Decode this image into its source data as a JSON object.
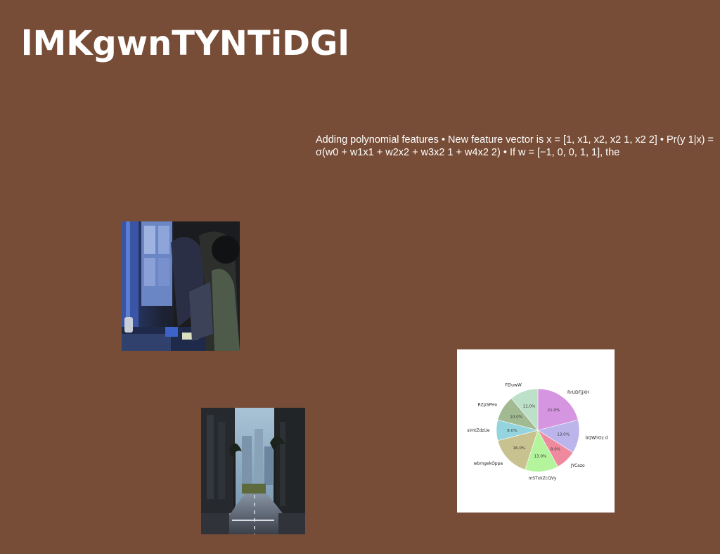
{
  "slide": {
    "background": "#774d37",
    "title": "lMKgwnTYNTiDGl",
    "body_text": "Adding polynomial features • New feature vector is x = [1, x1, x2, x2 1, x2 2] • Pr(y 1|x) = σ(w0 + w1x1 + w2x2 + w3x2 1 + w4x2 2) • If w = [−1, 0, 0, 1, 1], the"
  },
  "images": [
    {
      "name": "office-photo",
      "description_icon": "photo-icon"
    },
    {
      "name": "street-photo",
      "description_icon": "photo-icon"
    }
  ],
  "chart_data": {
    "type": "pie",
    "title": "",
    "slices": [
      {
        "label": "RrUDFjjXH",
        "value": 21.0,
        "pct_label": "21.0%",
        "color": "#d595e1"
      },
      {
        "label": "bQWhOz d",
        "value": 13.0,
        "pct_label": "13.0%",
        "color": "#bcb5ec"
      },
      {
        "label": "JYCazo",
        "value": 8.0,
        "pct_label": "8.0%",
        "color": "#ef8a9e"
      },
      {
        "label": "mSTxkZcQVy",
        "value": 13.0,
        "pct_label": "13.0%",
        "color": "#b4f49c"
      },
      {
        "label": "wbmgekOppa",
        "value": 16.0,
        "pct_label": "16.0%",
        "color": "#c8c290"
      },
      {
        "label": "simtZdzUe",
        "value": 8.0,
        "pct_label": "8.0%",
        "color": "#94d4de"
      },
      {
        "label": "RZpSPHo",
        "value": 10.0,
        "pct_label": "10.0%",
        "color": "#a2ba92"
      },
      {
        "label": "FEluwW",
        "value": 11.0,
        "pct_label": "11.0%",
        "color": "#bde0c8"
      }
    ],
    "legend": "none",
    "start_angle": "top",
    "direction": "clockwise"
  }
}
